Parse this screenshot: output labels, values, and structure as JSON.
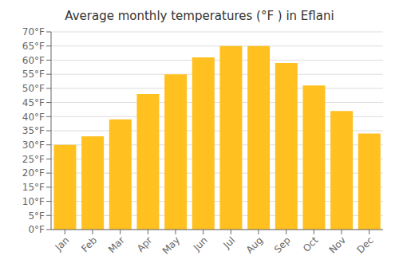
{
  "chart_data": {
    "type": "bar",
    "title": "Average monthly temperatures (°F ) in Eflani",
    "categories": [
      "Jan",
      "Feb",
      "Mar",
      "Apr",
      "May",
      "Jun",
      "Jul",
      "Aug",
      "Sep",
      "Oct",
      "Nov",
      "Dec"
    ],
    "values": [
      30,
      33,
      39,
      48,
      55,
      61,
      65,
      65,
      59,
      51,
      42,
      34
    ],
    "color": "#FFC020",
    "ylim": [
      0,
      70
    ],
    "yticks": [
      {
        "value": 0,
        "label": "0°F"
      },
      {
        "value": 5,
        "label": "5°F"
      },
      {
        "value": 10,
        "label": "10°F"
      },
      {
        "value": 15,
        "label": "15°F"
      },
      {
        "value": 20,
        "label": "20°F"
      },
      {
        "value": 25,
        "label": "25°F"
      },
      {
        "value": 30,
        "label": "30°F"
      },
      {
        "value": 35,
        "label": "35°F"
      },
      {
        "value": 40,
        "label": "40°F"
      },
      {
        "value": 45,
        "label": "45°F"
      },
      {
        "value": 50,
        "label": "50°F"
      },
      {
        "value": 55,
        "label": "55°F"
      },
      {
        "value": 60,
        "label": "60°F"
      },
      {
        "value": 65,
        "label": "65°F"
      },
      {
        "value": 70,
        "label": "70°F"
      }
    ],
    "grid": true
  }
}
